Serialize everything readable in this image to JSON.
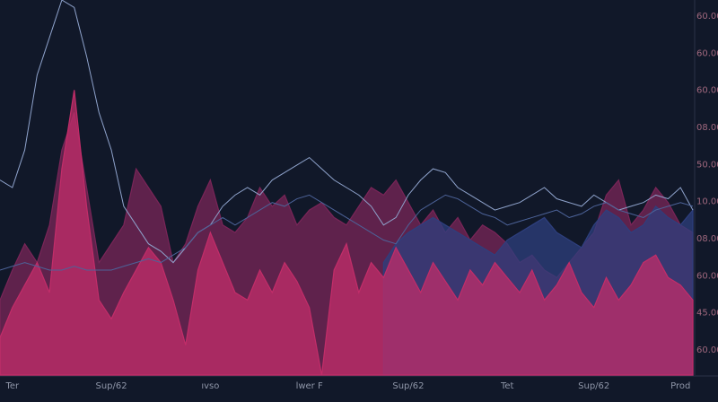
{
  "chart_data": {
    "type": "area",
    "categories": [
      null,
      "Ter",
      null,
      null,
      null,
      null,
      null,
      null,
      null,
      "Sup/62",
      null,
      null,
      null,
      null,
      null,
      null,
      null,
      "ıvso",
      null,
      null,
      null,
      null,
      null,
      null,
      null,
      "lwer F",
      null,
      null,
      null,
      null,
      null,
      null,
      null,
      "Sup/62",
      null,
      null,
      null,
      null,
      null,
      null,
      null,
      "Tet",
      null,
      null,
      null,
      null,
      null,
      null,
      "Sup/62",
      null,
      null,
      null,
      null,
      null,
      null,
      "Prod",
      null
    ],
    "ylim": [
      0,
      100
    ],
    "y_axis_labels": [
      "60.00",
      "60.00",
      "60.00",
      "08.00",
      "50.00",
      "10.00",
      "08.00",
      "60.00",
      "45.00",
      "60.00"
    ],
    "series": [
      {
        "color": "#7a2558",
        "kind": "area",
        "values": [
          20,
          28,
          35,
          30,
          40,
          60,
          70,
          50,
          30,
          35,
          40,
          55,
          50,
          45,
          30,
          35,
          45,
          52,
          40,
          38,
          42,
          50,
          45,
          48,
          40,
          44,
          46,
          42,
          40,
          45,
          50,
          48,
          52,
          46,
          40,
          44,
          38,
          42,
          36,
          40,
          38,
          35,
          30,
          32,
          28,
          26,
          30,
          34,
          38,
          48,
          52,
          40,
          44,
          50,
          46,
          40,
          38
        ]
      },
      {
        "color": "#2e3f7e",
        "kind": "area",
        "values": [
          null,
          null,
          null,
          null,
          null,
          null,
          null,
          null,
          null,
          null,
          null,
          null,
          null,
          null,
          null,
          null,
          null,
          null,
          null,
          null,
          null,
          null,
          null,
          null,
          null,
          null,
          null,
          null,
          null,
          null,
          null,
          30,
          35,
          38,
          40,
          42,
          40,
          38,
          36,
          34,
          32,
          36,
          38,
          40,
          42,
          38,
          36,
          34,
          40,
          44,
          42,
          38,
          40,
          45,
          42,
          40,
          44
        ]
      },
      {
        "color": "#c22d69",
        "kind": "area",
        "values": [
          10,
          18,
          24,
          30,
          22,
          55,
          76,
          45,
          20,
          15,
          22,
          28,
          34,
          30,
          20,
          8,
          28,
          38,
          30,
          22,
          20,
          28,
          22,
          30,
          25,
          18,
          0,
          28,
          35,
          22,
          30,
          26,
          34,
          28,
          22,
          30,
          25,
          20,
          28,
          24,
          30,
          26,
          22,
          28,
          20,
          24,
          30,
          22,
          18,
          26,
          20,
          24,
          30,
          32,
          26,
          24,
          20
        ]
      },
      {
        "color": "#8fa3cc",
        "kind": "line",
        "values": [
          52,
          50,
          60,
          80,
          90,
          100,
          98,
          85,
          70,
          60,
          45,
          40,
          35,
          33,
          30,
          34,
          38,
          40,
          45,
          48,
          50,
          48,
          52,
          54,
          56,
          58,
          55,
          52,
          50,
          48,
          45,
          40,
          42,
          48,
          52,
          55,
          54,
          50,
          48,
          46,
          44,
          45,
          46,
          48,
          50,
          47,
          46,
          45,
          48,
          46,
          44,
          45,
          46,
          48,
          47,
          50,
          44
        ]
      },
      {
        "color": "#4d6399",
        "kind": "line",
        "values": [
          28,
          29,
          30,
          29,
          28,
          28,
          29,
          28,
          28,
          28,
          29,
          30,
          31,
          30,
          32,
          34,
          38,
          40,
          42,
          40,
          42,
          44,
          46,
          45,
          47,
          48,
          46,
          44,
          42,
          40,
          38,
          36,
          35,
          40,
          44,
          46,
          48,
          47,
          45,
          43,
          42,
          40,
          41,
          42,
          43,
          44,
          42,
          43,
          45,
          46,
          44,
          43,
          42,
          44,
          45,
          46,
          45
        ]
      }
    ]
  }
}
